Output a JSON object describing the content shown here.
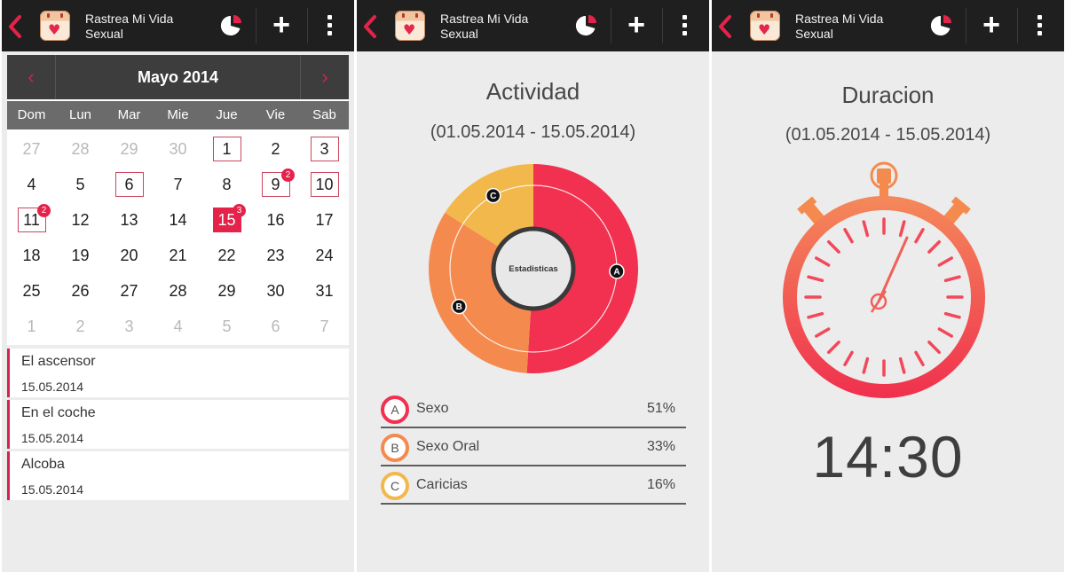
{
  "app": {
    "title_line1": "Rastrea Mi Vida",
    "title_line2": "Sexual",
    "add_label": "+"
  },
  "colors": {
    "accent": "#e5224a",
    "orange": "#f58a4e",
    "yellow": "#f2b84b",
    "bar": "#1f1f1f"
  },
  "calendar": {
    "month_label": "Mayo 2014",
    "prev_label": "‹",
    "next_label": "›",
    "weekdays": [
      "Dom",
      "Lun",
      "Mar",
      "Mie",
      "Jue",
      "Vie",
      "Sab"
    ],
    "weeks": [
      [
        {
          "d": "27",
          "out": true
        },
        {
          "d": "28",
          "out": true
        },
        {
          "d": "29",
          "out": true
        },
        {
          "d": "30",
          "out": true
        },
        {
          "d": "1",
          "box": true
        },
        {
          "d": "2"
        },
        {
          "d": "3",
          "box": true
        }
      ],
      [
        {
          "d": "4"
        },
        {
          "d": "5"
        },
        {
          "d": "6",
          "box": true
        },
        {
          "d": "7"
        },
        {
          "d": "8"
        },
        {
          "d": "9",
          "box": true,
          "badge": "2"
        },
        {
          "d": "10",
          "box": true
        }
      ],
      [
        {
          "d": "11",
          "box": true,
          "badge": "2"
        },
        {
          "d": "12"
        },
        {
          "d": "13"
        },
        {
          "d": "14"
        },
        {
          "d": "15",
          "today": true,
          "badge": "3"
        },
        {
          "d": "16"
        },
        {
          "d": "17"
        }
      ],
      [
        {
          "d": "18"
        },
        {
          "d": "19"
        },
        {
          "d": "20"
        },
        {
          "d": "21"
        },
        {
          "d": "22"
        },
        {
          "d": "23"
        },
        {
          "d": "24"
        }
      ],
      [
        {
          "d": "25"
        },
        {
          "d": "26"
        },
        {
          "d": "27"
        },
        {
          "d": "28"
        },
        {
          "d": "29"
        },
        {
          "d": "30"
        },
        {
          "d": "31"
        }
      ],
      [
        {
          "d": "1",
          "out": true
        },
        {
          "d": "2",
          "out": true
        },
        {
          "d": "3",
          "out": true
        },
        {
          "d": "4",
          "out": true
        },
        {
          "d": "5",
          "out": true
        },
        {
          "d": "6",
          "out": true
        },
        {
          "d": "7",
          "out": true
        }
      ]
    ]
  },
  "entries": [
    {
      "title": "El ascensor",
      "date": "15.05.2014"
    },
    {
      "title": "En el coche",
      "date": "15.05.2014"
    },
    {
      "title": "Alcoba",
      "date": "15.05.2014"
    }
  ],
  "activity": {
    "title": "Actividad",
    "range": "(01.05.2014 - 15.05.2014)",
    "center_label": "Estadisticas",
    "items": [
      {
        "key": "A",
        "label": "Sexo",
        "pct": "51%",
        "value": 51,
        "color": "#f2304f"
      },
      {
        "key": "B",
        "label": "Sexo Oral",
        "pct": "33%",
        "value": 33,
        "color": "#f58a4e"
      },
      {
        "key": "C",
        "label": "Caricias",
        "pct": "16%",
        "value": 16,
        "color": "#f2b84b"
      }
    ]
  },
  "duration": {
    "title": "Duracion",
    "range": "(01.05.2014 - 15.05.2014)",
    "time": "14:30"
  }
}
